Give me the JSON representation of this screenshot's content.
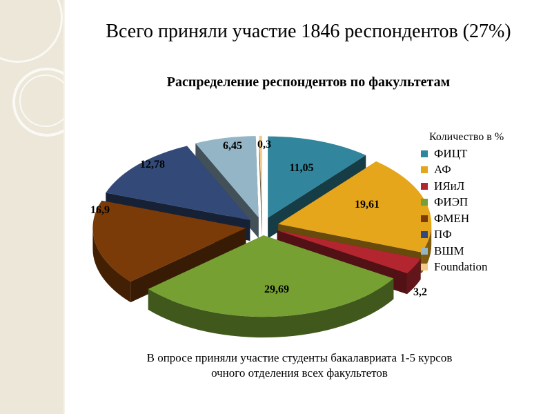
{
  "slide": {
    "title": "Всего приняли участие 1846 респондентов (27%)",
    "footer_line1": "В опросе приняли участие студенты бакалавриата 1-5 курсов",
    "footer_line2": "очного отделения всех факультетов"
  },
  "chart_data": {
    "type": "pie",
    "title": "Распределение респондентов по факультетам",
    "legend_title": "Количество в %",
    "legend_position": "right",
    "series": [
      {
        "name": "ФИЦТ",
        "value": 11.05,
        "label": "11,05",
        "color": "#31859c"
      },
      {
        "name": "АФ",
        "value": 19.61,
        "label": "19,61",
        "color": "#e6a61b"
      },
      {
        "name": "ИЯиЛ",
        "value": 3.2,
        "label": "3,2",
        "color": "#b3262f"
      },
      {
        "name": "ФИЭП",
        "value": 29.69,
        "label": "29,69",
        "color": "#77a033"
      },
      {
        "name": "ФМЕН",
        "value": 16.9,
        "label": "16,9",
        "color": "#7a3b08"
      },
      {
        "name": "ПФ",
        "value": 12.78,
        "label": "12,78",
        "color": "#334a78"
      },
      {
        "name": "ВШМ",
        "value": 6.45,
        "label": "6,45",
        "color": "#93b5c6"
      },
      {
        "name": "Foundation",
        "value": 0.3,
        "label": "0,3",
        "color": "#f5c98a"
      }
    ]
  }
}
